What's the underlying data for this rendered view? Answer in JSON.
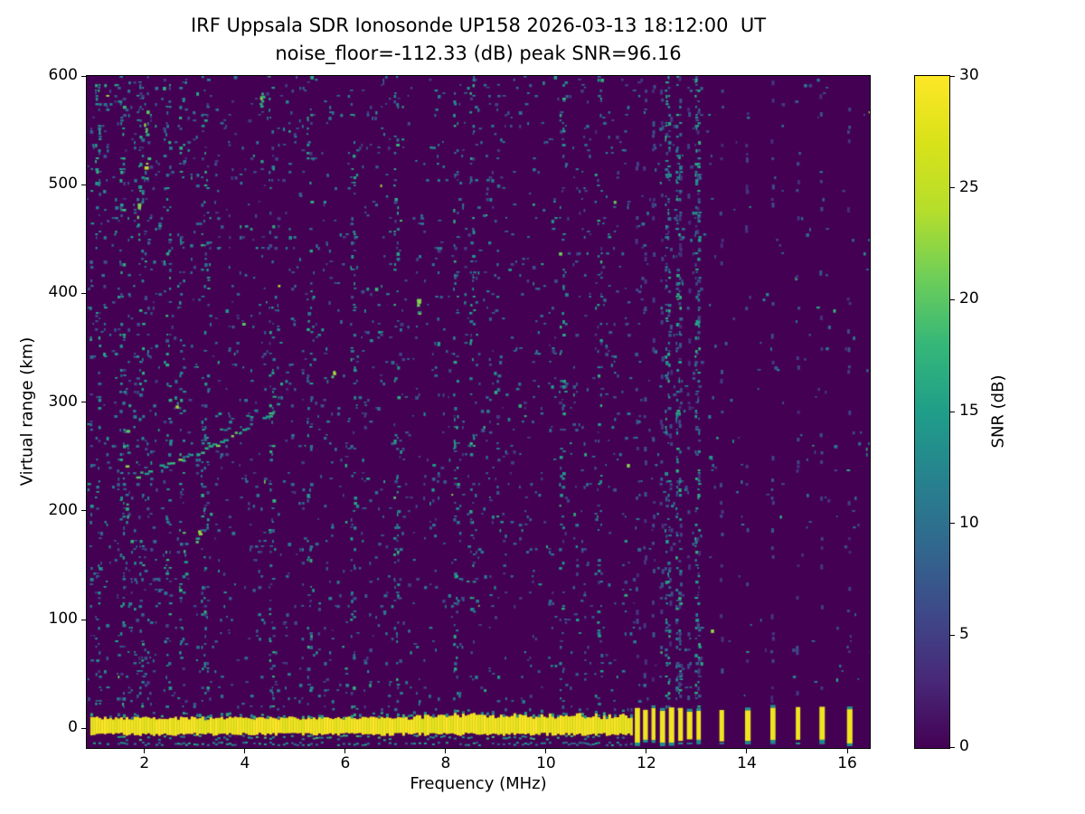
{
  "chart_data": {
    "type": "heatmap",
    "title": "IRF Uppsala SDR Ionosonde UP158 2026-03-13 18:12:00  UT",
    "subtitle": "noise_floor=-112.33 (dB) peak SNR=96.16",
    "xlabel": "Frequency (MHz)",
    "ylabel": "Virtual range (km)",
    "xlim": [
      0.85,
      16.45
    ],
    "ylim": [
      -18,
      600
    ],
    "xticks": [
      2,
      4,
      6,
      8,
      10,
      12,
      14,
      16
    ],
    "yticks": [
      0,
      100,
      200,
      300,
      400,
      500,
      600
    ],
    "grid": false,
    "colormap": "viridis",
    "colors": {
      "background": "#440154",
      "mid": "#21918c",
      "peak": "#fde725"
    },
    "colorbar": {
      "label": "SNR (dB)",
      "ticks": [
        0,
        5,
        10,
        15,
        20,
        25,
        30
      ],
      "range": [
        0,
        30
      ]
    },
    "noise_floor_db": -112.33,
    "peak_snr_db": 96.16,
    "features": {
      "ground_band": {
        "freq_start_mhz": 0.92,
        "freq_end_mhz": 11.68,
        "top_km": 9,
        "bottom_km": -5,
        "snr_db": 30
      },
      "sparse_pulses_mhz": [
        11.82,
        11.98,
        12.14,
        12.32,
        12.5,
        12.68,
        12.86,
        13.04,
        13.5,
        14.02,
        14.52,
        15.02,
        15.5,
        16.05
      ],
      "echo_trace_km": [
        [
          1.75,
          232
        ],
        [
          2.0,
          236
        ],
        [
          2.3,
          241
        ],
        [
          2.6,
          246
        ],
        [
          2.9,
          251
        ],
        [
          3.2,
          257
        ],
        [
          3.5,
          264
        ],
        [
          3.8,
          271
        ],
        [
          4.1,
          279
        ],
        [
          4.35,
          287
        ],
        [
          4.55,
          294
        ],
        [
          4.72,
          301
        ]
      ],
      "second_echo_offset_km": 10,
      "second_echo_range_mhz": [
        3.4,
        4.7
      ],
      "interference_lines_mhz": [
        1.05,
        1.55,
        1.95,
        2.45,
        2.75,
        3.2,
        4.5,
        5.3,
        6.15,
        7.0,
        8.2,
        8.5,
        10.3,
        11.05,
        12.4,
        12.62,
        13.02
      ],
      "bright_spots": [
        {
          "f": 2.02,
          "r": 540,
          "n": 9,
          "spread": 70
        },
        {
          "f": 1.85,
          "r": 480,
          "n": 5,
          "spread": 40
        },
        {
          "f": 1.65,
          "r": 220,
          "n": 6,
          "spread": 120
        },
        {
          "f": 2.78,
          "r": 170,
          "n": 4,
          "spread": 60
        },
        {
          "f": 4.32,
          "r": 580,
          "n": 6,
          "spread": 14
        },
        {
          "f": 5.75,
          "r": 325,
          "n": 4,
          "spread": 8
        },
        {
          "f": 7.45,
          "r": 392,
          "n": 6,
          "spread": 18
        },
        {
          "f": 3.05,
          "r": 170,
          "n": 4,
          "spread": 28
        },
        {
          "f": 2.62,
          "r": 300,
          "n": 3,
          "spread": 12
        }
      ],
      "bottom_line_km": -13
    }
  }
}
